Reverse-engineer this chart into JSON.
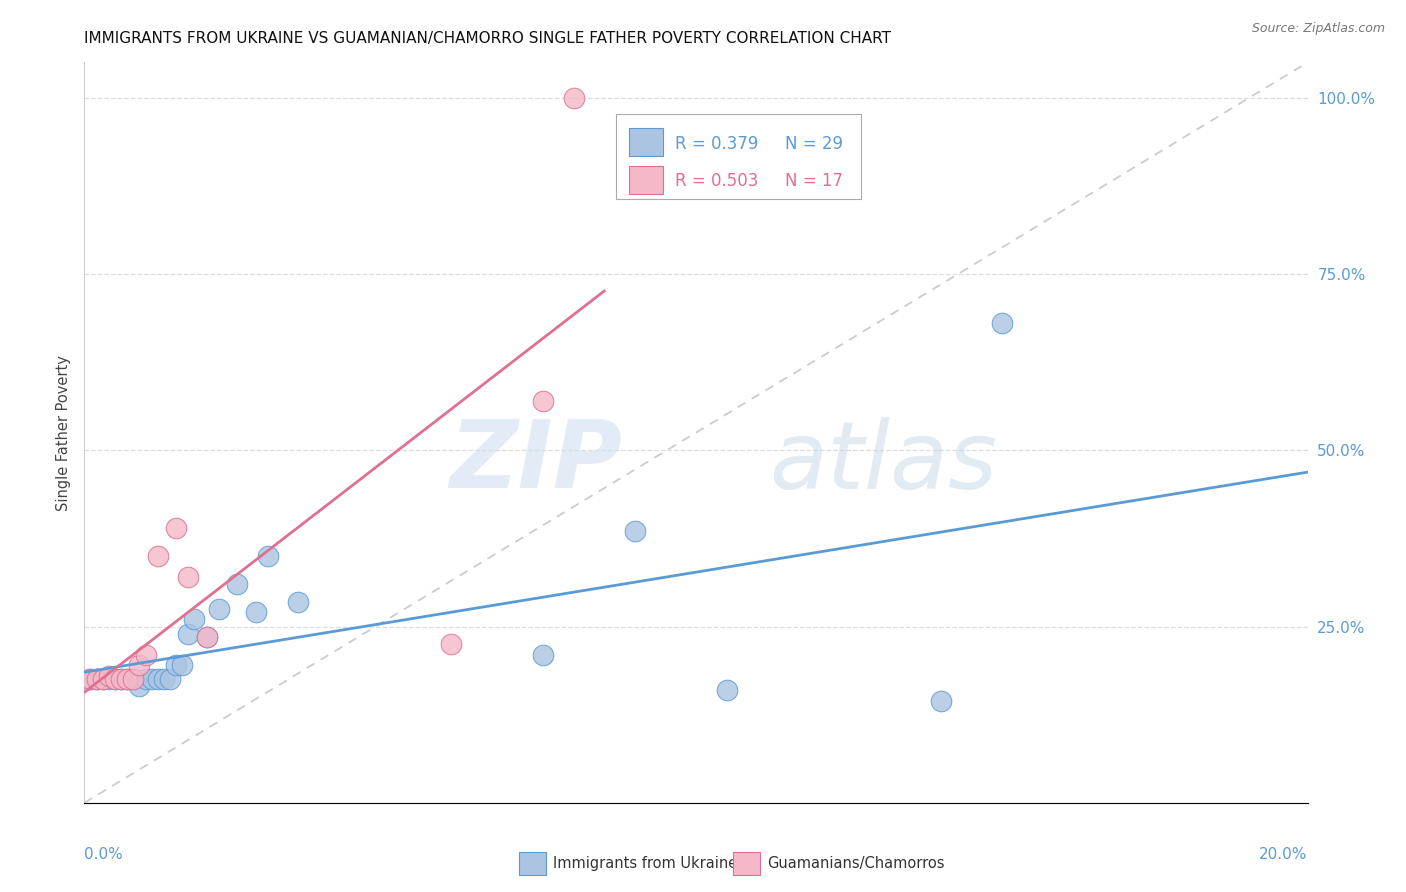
{
  "title": "IMMIGRANTS FROM UKRAINE VS GUAMANIAN/CHAMORRO SINGLE FATHER POVERTY CORRELATION CHART",
  "source": "Source: ZipAtlas.com",
  "ylabel": "Single Father Poverty",
  "legend_blue_r": "R = 0.379",
  "legend_blue_n": "N = 29",
  "legend_pink_r": "R = 0.503",
  "legend_pink_n": "N = 17",
  "legend_label_blue": "Immigrants from Ukraine",
  "legend_label_pink": "Guamanians/Chamorros",
  "blue_color": "#aac4e2",
  "blue_line_color": "#5b9bd5",
  "pink_color": "#f4b8c8",
  "pink_line_color": "#e07090",
  "legend_blue_text_color": "#5b9bd5",
  "legend_pink_text_color": "#e07090",
  "watermark_zip": "ZIP",
  "watermark_atlas": "atlas",
  "background_color": "#ffffff",
  "grid_color": "#dddddd",
  "blue_x": [
    0.001,
    0.002,
    0.003,
    0.004,
    0.005,
    0.006,
    0.007,
    0.008,
    0.009,
    0.01,
    0.011,
    0.012,
    0.013,
    0.014,
    0.015,
    0.016,
    0.017,
    0.018,
    0.02,
    0.022,
    0.025,
    0.028,
    0.03,
    0.035,
    0.075,
    0.09,
    0.105,
    0.14,
    0.15
  ],
  "blue_y": [
    0.175,
    0.175,
    0.175,
    0.175,
    0.175,
    0.175,
    0.175,
    0.175,
    0.165,
    0.175,
    0.175,
    0.175,
    0.175,
    0.175,
    0.195,
    0.195,
    0.24,
    0.26,
    0.235,
    0.275,
    0.31,
    0.27,
    0.35,
    0.285,
    0.21,
    0.385,
    0.16,
    0.145,
    0.68
  ],
  "pink_x": [
    0.001,
    0.002,
    0.003,
    0.004,
    0.005,
    0.006,
    0.007,
    0.008,
    0.009,
    0.01,
    0.012,
    0.015,
    0.017,
    0.02,
    0.06,
    0.075,
    0.08
  ],
  "pink_y": [
    0.175,
    0.175,
    0.175,
    0.18,
    0.175,
    0.175,
    0.175,
    0.175,
    0.195,
    0.21,
    0.35,
    0.39,
    0.32,
    0.235,
    0.225,
    0.57,
    1.0
  ],
  "xlim": [
    0.0,
    0.2
  ],
  "ylim": [
    0.0,
    1.05
  ],
  "yticks": [
    0.0,
    0.25,
    0.5,
    0.75,
    1.0
  ],
  "ytick_labels": [
    "",
    "25.0%",
    "50.0%",
    "75.0%",
    "100.0%"
  ]
}
